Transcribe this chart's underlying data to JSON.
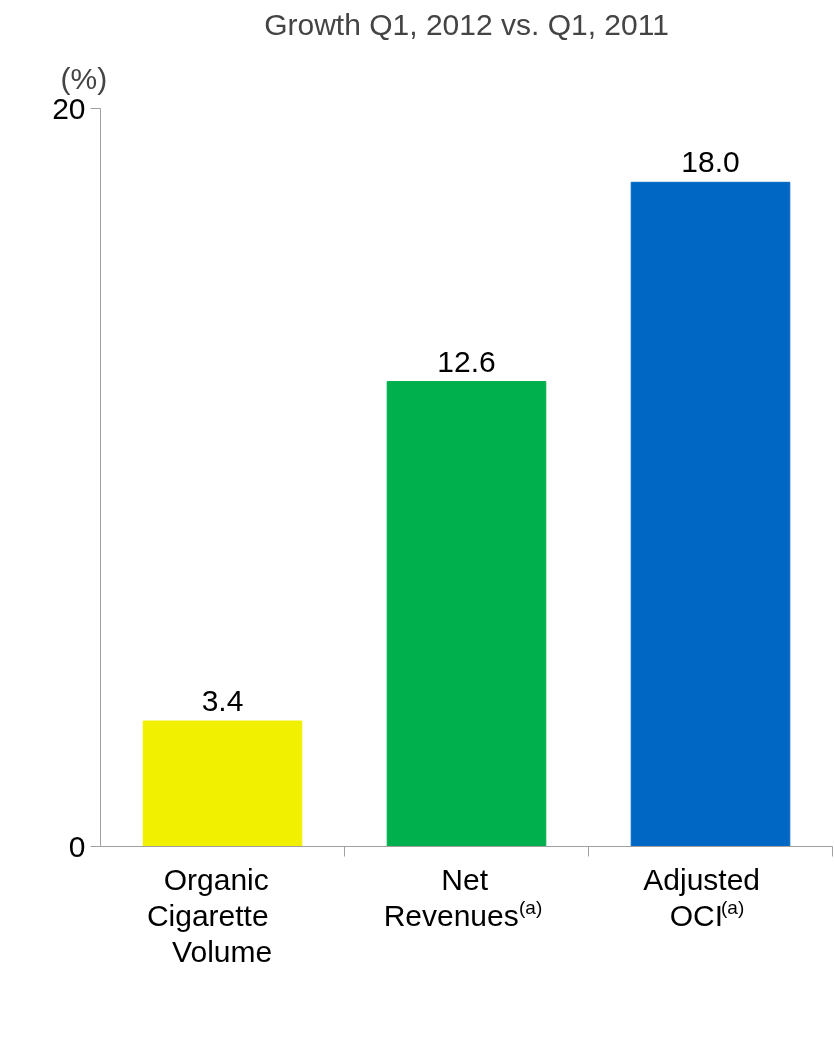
{
  "chart_data": {
    "type": "bar",
    "title": "Growth Q1, 2012 vs. Q1, 2011",
    "ylabel": "(%)",
    "categories": [
      "Organic Cigarette Volume",
      "Net Revenues$^{(a)}$",
      "Adjusted OCI$^{(a)}$"
    ],
    "values": [
      3.4,
      12.6,
      18.0
    ],
    "value_labels": [
      "3.4",
      "12.6",
      "18.0"
    ],
    "colors": [
      "#f0f000",
      "#00b04c",
      "#0068c4"
    ],
    "ylim": [
      0,
      20
    ],
    "yticks": [
      0,
      20
    ]
  }
}
